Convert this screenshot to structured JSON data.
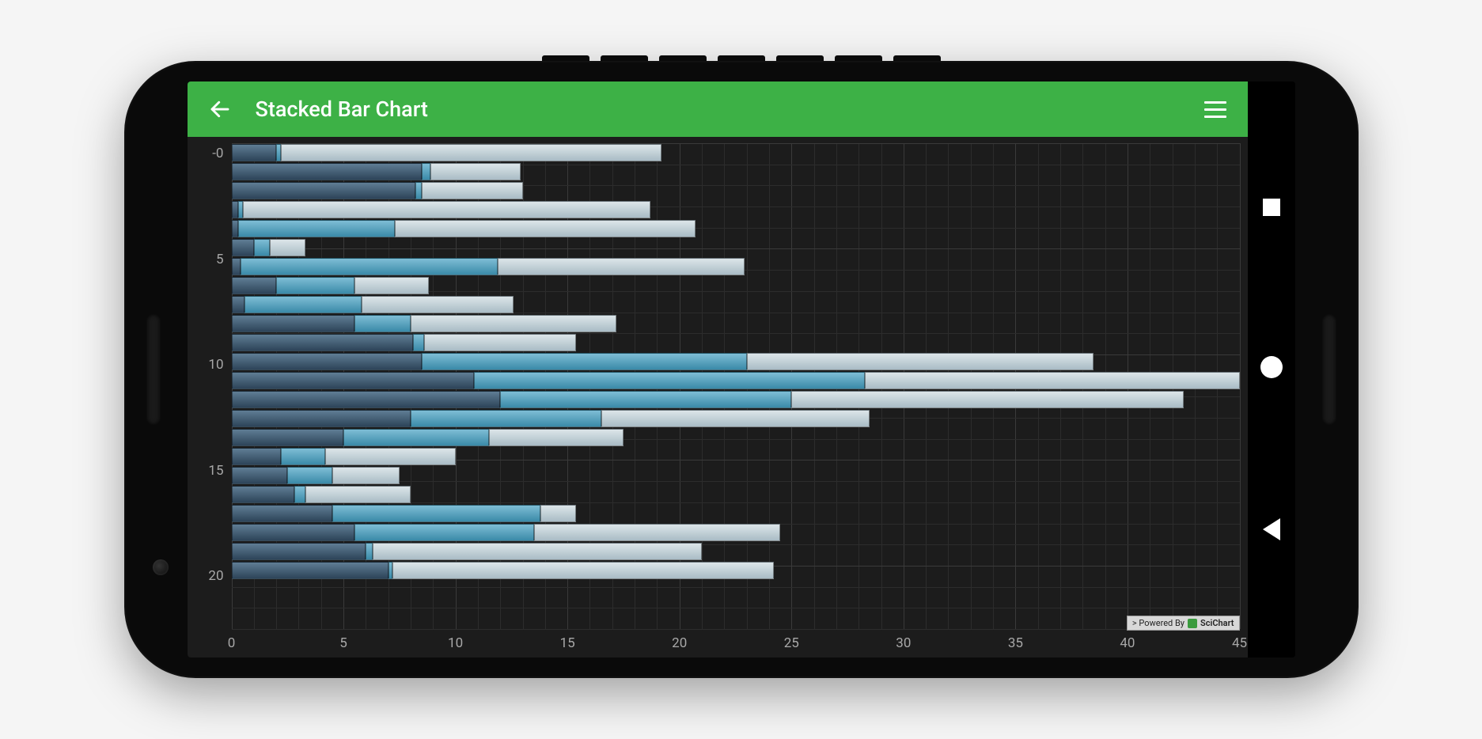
{
  "app_bar": {
    "title": "Stacked Bar Chart",
    "bg_color": "#3db146",
    "text_color": "#ffffff"
  },
  "chart": {
    "type": "horizontal-stacked-bar",
    "bg_color": "#1c1c1c",
    "grid_minor_color": "#2c2c2c",
    "grid_major_color": "#3a3a3a",
    "axis_text_color": "#a8a8a8",
    "xlim": [
      0,
      45
    ],
    "x_ticks": [
      0,
      5,
      10,
      15,
      20,
      25,
      30,
      35,
      40,
      45
    ],
    "x_minor_step": 1,
    "y_ticks": [
      0,
      5,
      10,
      15,
      20
    ],
    "y_tick_labels": [
      "-0",
      "5",
      "10",
      "15",
      "20"
    ],
    "series_colors": {
      "s1_top": "#5f7d94",
      "s1_bot": "#2d4459",
      "s2_top": "#7ebdd5",
      "s2_bot": "#3a8aa8",
      "s3_top": "#dce5e9",
      "s3_bot": "#a9bcc5"
    },
    "rows": [
      {
        "y": 0,
        "s1": 2.0,
        "s2": 0.2,
        "s3": 17.0
      },
      {
        "y": 1,
        "s1": 8.5,
        "s2": 0.4,
        "s3": 4.0
      },
      {
        "y": 2,
        "s1": 8.2,
        "s2": 0.3,
        "s3": 4.5
      },
      {
        "y": 3,
        "s1": 0.3,
        "s2": 0.2,
        "s3": 18.2
      },
      {
        "y": 4,
        "s1": 0.3,
        "s2": 7.0,
        "s3": 13.4
      },
      {
        "y": 5,
        "s1": 1.0,
        "s2": 0.7,
        "s3": 1.6
      },
      {
        "y": 6,
        "s1": 0.4,
        "s2": 11.5,
        "s3": 11.0
      },
      {
        "y": 7,
        "s1": 2.0,
        "s2": 3.5,
        "s3": 3.3
      },
      {
        "y": 8,
        "s1": 0.6,
        "s2": 5.2,
        "s3": 6.8
      },
      {
        "y": 9,
        "s1": 5.5,
        "s2": 2.5,
        "s3": 9.2
      },
      {
        "y": 10,
        "s1": 8.1,
        "s2": 0.5,
        "s3": 6.8
      },
      {
        "y": 11,
        "s1": 8.5,
        "s2": 14.5,
        "s3": 15.5
      },
      {
        "y": 12,
        "s1": 11.0,
        "s2": 17.7,
        "s3": 17.0
      },
      {
        "y": 13,
        "s1": 12.0,
        "s2": 13.0,
        "s3": 17.5
      },
      {
        "y": 14,
        "s1": 8.0,
        "s2": 8.5,
        "s3": 12.0
      },
      {
        "y": 15,
        "s1": 5.0,
        "s2": 6.5,
        "s3": 6.0
      },
      {
        "y": 16,
        "s1": 2.2,
        "s2": 2.0,
        "s3": 5.8
      },
      {
        "y": 17,
        "s1": 2.5,
        "s2": 2.0,
        "s3": 3.0
      },
      {
        "y": 18,
        "s1": 2.8,
        "s2": 0.5,
        "s3": 4.7
      },
      {
        "y": 19,
        "s1": 4.5,
        "s2": 9.3,
        "s3": 1.6
      },
      {
        "y": 20,
        "s1": 5.5,
        "s2": 8.0,
        "s3": 11.0
      },
      {
        "y": 21,
        "s1": 6.0,
        "s2": 0.3,
        "s3": 14.7
      },
      {
        "y": 22,
        "s1": 7.0,
        "s2": 0.2,
        "s3": 17.0
      }
    ]
  },
  "branding": {
    "prefix": "> Powered By",
    "name": "SciChart"
  }
}
